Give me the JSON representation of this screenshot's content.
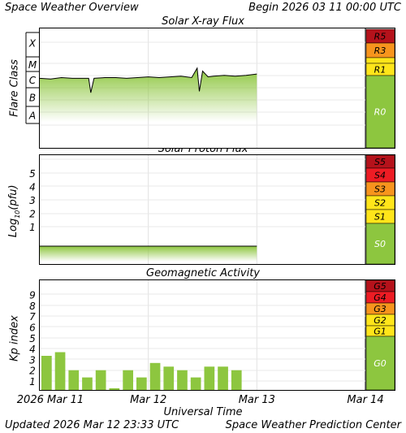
{
  "header": {
    "title": "Space Weather Overview",
    "begin": "Begin 2026 03 11 00:00 UTC"
  },
  "footer": {
    "updated": "Updated 2026 Mar 12 23:33 UTC",
    "center": "Space Weather Prediction Center"
  },
  "x_axis": {
    "label": "Universal Time",
    "ticks": [
      "2026 Mar 11",
      "Mar 12",
      "Mar 13",
      "Mar 14"
    ]
  },
  "colors": {
    "green": "#8dc63f",
    "yellow": "#ffe51a",
    "orange": "#f7941d",
    "red": "#ed1c24",
    "darkred": "#b5121b"
  },
  "chart_data": [
    {
      "type": "area",
      "title": "Solar X-ray Flux",
      "ylabel": "Flare Class",
      "y_ticks": [
        "X",
        "M",
        "C",
        "B",
        "A"
      ],
      "scale_labels": [
        "R5",
        "R3",
        "R1",
        "R0"
      ],
      "x_unit": "days since 2026-03-11 00:00 UTC",
      "x": [
        0,
        0.1,
        0.2,
        0.3,
        0.4,
        0.45,
        0.47,
        0.5,
        0.6,
        0.7,
        0.8,
        0.9,
        1.0,
        1.1,
        1.2,
        1.3,
        1.4,
        1.45,
        1.47,
        1.5,
        1.55,
        1.6,
        1.7,
        1.8,
        1.9,
        2.0
      ],
      "class_values": [
        -6.5,
        -6.55,
        -6.45,
        -6.5,
        -6.5,
        -6.5,
        -7.5,
        -6.5,
        -6.45,
        -6.45,
        -6.5,
        -6.45,
        -6.4,
        -6.45,
        -6.4,
        -6.35,
        -6.45,
        -5.8,
        -7.4,
        -6.0,
        -6.4,
        -6.35,
        -6.3,
        -6.35,
        -6.3,
        -6.2
      ]
    },
    {
      "type": "area",
      "title": "Solar Proton Flux",
      "ylabel": "Log10(pfu)",
      "y_ticks": [
        "5",
        "4",
        "3",
        "2",
        "1"
      ],
      "scale_labels": [
        "S5",
        "S4",
        "S3",
        "S2",
        "S1",
        "S0"
      ],
      "x_unit": "days since 2026-03-11 00:00 UTC",
      "x": [
        0,
        0.25,
        0.5,
        0.75,
        1.0,
        1.25,
        1.5,
        1.75,
        2.0
      ],
      "values": [
        -0.6,
        -0.6,
        -0.6,
        -0.6,
        -0.6,
        -0.6,
        -0.6,
        -0.6,
        -0.6
      ]
    },
    {
      "type": "bar",
      "title": "Geomagnetic Activity",
      "ylabel": "Kp index",
      "y_ticks": [
        "9",
        "8",
        "7",
        "6",
        "5",
        "4",
        "3",
        "2",
        "1"
      ],
      "scale_labels": [
        "G5",
        "G4",
        "G3",
        "G2",
        "G1",
        "G0"
      ],
      "x_unit": "days since 2026-03-11 00:00 UTC",
      "bar_width_hours": 3,
      "x": [
        0,
        0.125,
        0.25,
        0.375,
        0.5,
        0.625,
        0.75,
        0.875,
        1.0,
        1.125,
        1.25,
        1.375,
        1.5,
        1.625,
        1.75,
        1.875
      ],
      "values": [
        3.33,
        3.67,
        2.0,
        1.33,
        2.0,
        0.33,
        2.0,
        1.33,
        2.67,
        2.33,
        2.0,
        1.33,
        2.33,
        2.33,
        2.0,
        0.0
      ]
    }
  ]
}
